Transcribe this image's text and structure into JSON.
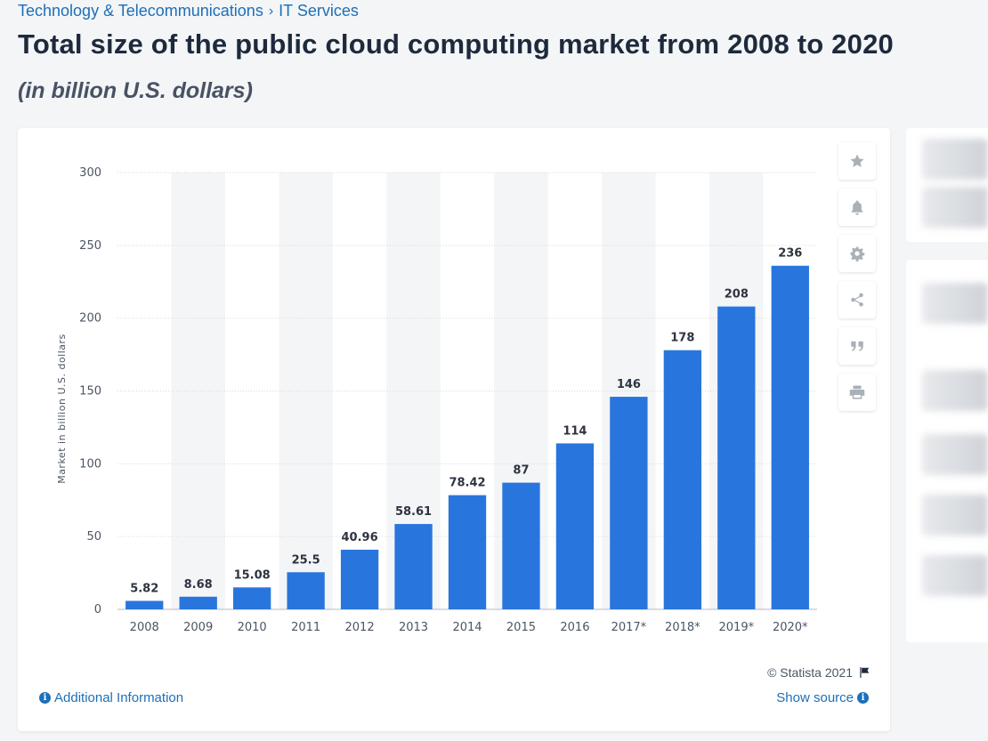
{
  "breadcrumb": {
    "category": "Technology & Telecommunications",
    "separator": "›",
    "subcategory": "IT Services"
  },
  "title": "Total size of the public cloud computing market from 2008 to 2020",
  "subtitle": "(in billion U.S. dollars)",
  "toolbar": {
    "buttons": [
      {
        "icon": "star-icon"
      },
      {
        "icon": "bell-icon"
      },
      {
        "icon": "gear-icon"
      },
      {
        "icon": "share-icon"
      },
      {
        "icon": "quote-icon"
      },
      {
        "icon": "print-icon"
      }
    ]
  },
  "footer": {
    "copyright": "© Statista 2021",
    "additional_info": "Additional Information",
    "show_source": "Show source",
    "info_glyph": "i"
  },
  "colors": {
    "bar": "#2876dd",
    "stripe": "#f4f5f6",
    "grid": "#d5d9de",
    "text": "#1e2a3c",
    "link": "#1d6fb8"
  },
  "chart_data": {
    "type": "bar",
    "categories": [
      "2008",
      "2009",
      "2010",
      "2011",
      "2012",
      "2013",
      "2014",
      "2015",
      "2016",
      "2017*",
      "2018*",
      "2019*",
      "2020*"
    ],
    "values": [
      5.82,
      8.68,
      15.08,
      25.5,
      40.96,
      58.61,
      78.42,
      87,
      114,
      146,
      178,
      208,
      236
    ],
    "labels": [
      "5.82",
      "8.68",
      "15.08",
      "25.5",
      "40.96",
      "58.61",
      "78.42",
      "87",
      "114",
      "146",
      "178",
      "208",
      "236"
    ],
    "yticks": [
      "0",
      "50",
      "100",
      "150",
      "200",
      "250",
      "300"
    ],
    "ylim": [
      0,
      300
    ],
    "ylabel": "Market in billion U.S. dollars",
    "xlabel": "",
    "grid": true
  }
}
